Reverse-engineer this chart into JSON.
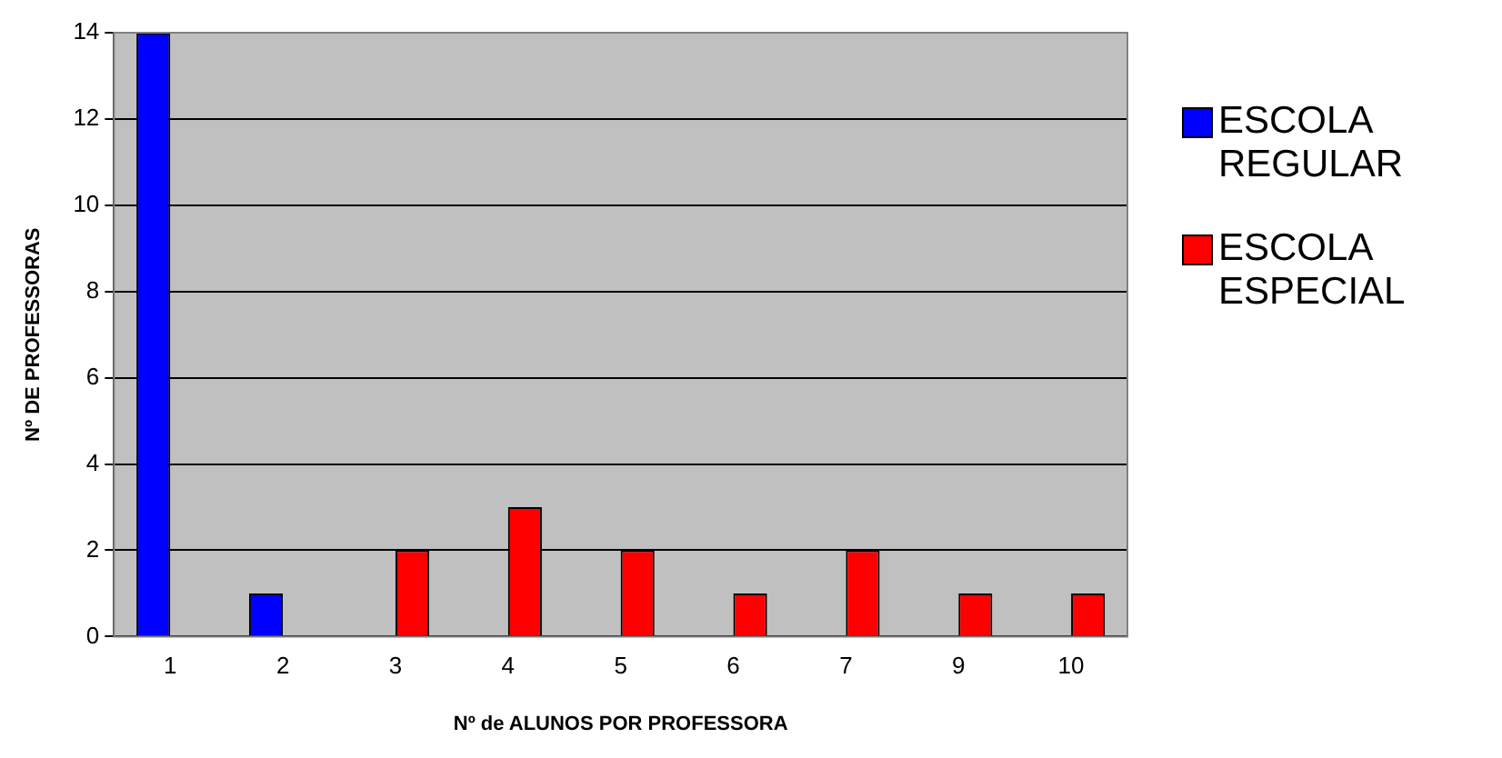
{
  "chart_data": {
    "type": "bar",
    "xlabel": "Nº de ALUNOS POR PROFESSORA",
    "ylabel": "Nº DE PROFESSORAS",
    "categories": [
      "1",
      "2",
      "3",
      "4",
      "5",
      "6",
      "7",
      "9",
      "10"
    ],
    "series": [
      {
        "name": "ESCOLA REGULAR",
        "color": "#0000ff",
        "values": [
          14,
          1,
          null,
          null,
          null,
          null,
          null,
          null,
          null
        ]
      },
      {
        "name": "ESCOLA ESPECIAL",
        "color": "#ff0000",
        "values": [
          null,
          null,
          2,
          3,
          2,
          1,
          2,
          1,
          1
        ]
      }
    ],
    "ylim": [
      0,
      14
    ],
    "yticks": [
      0,
      2,
      4,
      6,
      8,
      10,
      12,
      14
    ],
    "grid": "y",
    "legend": "right"
  }
}
